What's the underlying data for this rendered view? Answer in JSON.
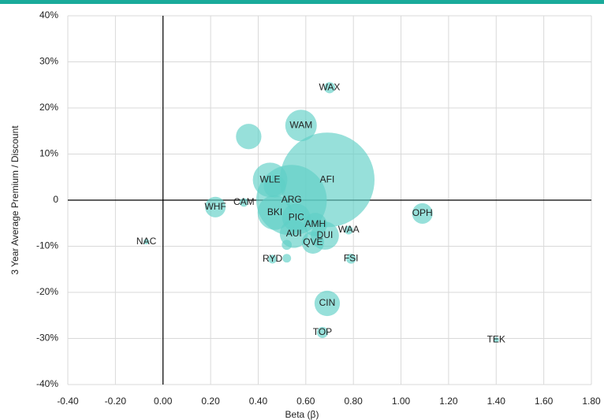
{
  "chart_data": {
    "type": "bubble",
    "x_label": "Beta (β)",
    "y_label": "3 Year Average Premium / Discount",
    "color": "#5fcfc6",
    "points": {
      "labels": [
        "WAX",
        "WAM",
        null,
        "AFI",
        "WLE",
        null,
        "ARG",
        "CAM",
        "WHF",
        "BKI",
        "PIC",
        "AMH",
        "WAA",
        "OPH",
        "AUI",
        "DUI",
        "QVE",
        null,
        "NAC",
        "RYD",
        null,
        "FSI",
        "CIN",
        "TOP",
        "TEK"
      ],
      "x": [
        0.7,
        0.58,
        0.36,
        0.69,
        0.45,
        0.47,
        0.54,
        0.34,
        0.22,
        0.47,
        0.56,
        0.64,
        0.78,
        1.09,
        0.55,
        0.68,
        0.63,
        0.52,
        -0.07,
        0.46,
        0.52,
        0.79,
        0.69,
        0.67,
        1.4
      ],
      "y": [
        24.4,
        16.2,
        13.8,
        4.4,
        4.4,
        3.0,
        0.0,
        -0.5,
        -1.5,
        -2.7,
        -3.8,
        -5.3,
        -6.5,
        -2.9,
        -7.3,
        -7.7,
        -9.2,
        -9.7,
        -9.0,
        -12.8,
        -12.6,
        -12.7,
        -22.4,
        -28.7,
        -30.3
      ],
      "sizes": [
        0.5,
        4.0,
        2.6,
        36.0,
        4.8,
        2.0,
        20.0,
        0.3,
        1.7,
        4.8,
        3.2,
        2.2,
        0.3,
        1.7,
        3.2,
        3.2,
        2.0,
        0.4,
        0.05,
        0.3,
        0.3,
        0.4,
        2.6,
        0.5,
        0.1
      ]
    },
    "xlim": [
      -0.4,
      1.8
    ],
    "xticks": [
      {
        "value": -0.4,
        "label": "-0.40"
      },
      {
        "value": -0.2,
        "label": "-0.20"
      },
      {
        "value": 0,
        "label": "0.00"
      },
      {
        "value": 0.2,
        "label": "0.20"
      },
      {
        "value": 0.4,
        "label": "0.40"
      },
      {
        "value": 0.6,
        "label": "0.60"
      },
      {
        "value": 0.8,
        "label": "0.80"
      },
      {
        "value": 1.0,
        "label": "1.00"
      },
      {
        "value": 1.2,
        "label": "1.20"
      },
      {
        "value": 1.4,
        "label": "1.40"
      },
      {
        "value": 1.6,
        "label": "1.60"
      },
      {
        "value": 1.8,
        "label": "1.80"
      }
    ],
    "ylim": [
      -40,
      40
    ],
    "yticks": [
      {
        "value": -40,
        "label": "-40%"
      },
      {
        "value": -30,
        "label": "-30%"
      },
      {
        "value": -20,
        "label": "-20%"
      },
      {
        "value": -10,
        "label": "-10%"
      },
      {
        "value": 0,
        "label": "0"
      },
      {
        "value": 10,
        "label": "10%"
      },
      {
        "value": 20,
        "label": "20%"
      },
      {
        "value": 30,
        "label": "30%"
      },
      {
        "value": 40,
        "label": "40%"
      }
    ],
    "grid": true
  }
}
